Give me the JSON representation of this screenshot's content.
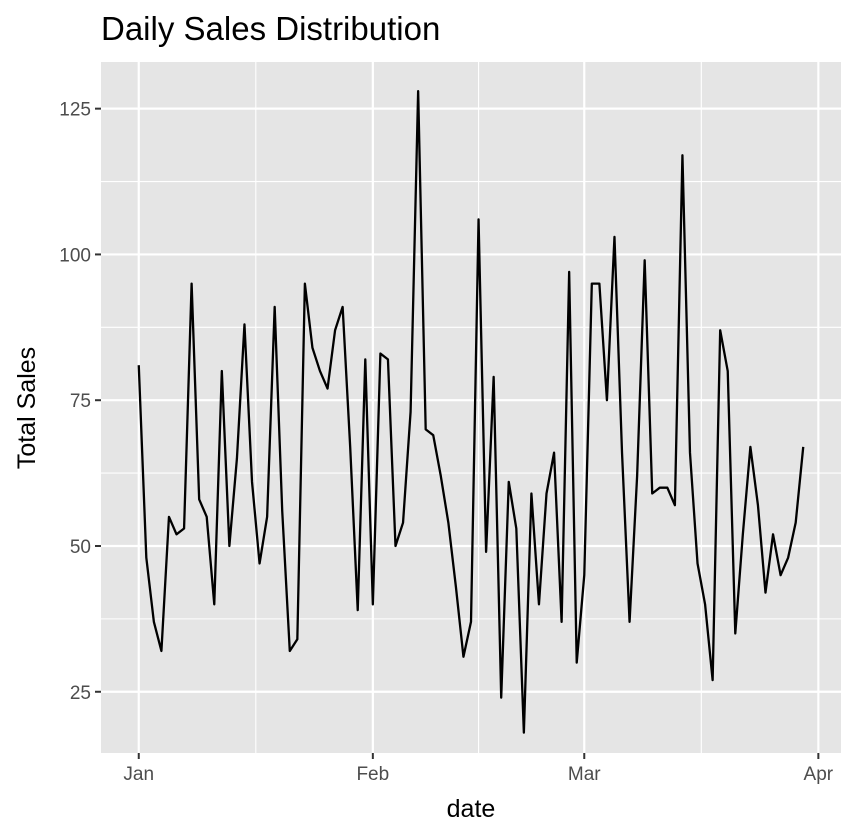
{
  "chart_data": {
    "type": "line",
    "title": "Daily Sales Distribution",
    "xlabel": "date",
    "ylabel": "Total Sales",
    "x_type": "date",
    "x_start": "2023-01-01",
    "x_end": "2023-03-31",
    "xlim": [
      "2022-12-27",
      "2023-04-04"
    ],
    "ylim": [
      14.5,
      133
    ],
    "x_ticks": [
      {
        "label": "Jan",
        "date": "2023-01-01"
      },
      {
        "label": "Feb",
        "date": "2023-02-01"
      },
      {
        "label": "Mar",
        "date": "2023-03-01"
      },
      {
        "label": "Apr",
        "date": "2023-04-01"
      }
    ],
    "y_ticks": [
      25,
      50,
      75,
      100,
      125
    ],
    "grid": true,
    "panel_background": "#e5e5e5",
    "grid_color": "#ffffff",
    "line_color": "#000000",
    "series": [
      {
        "values": [
          81,
          48,
          37,
          32,
          55,
          52,
          53,
          95,
          58,
          55,
          40,
          80,
          50,
          65,
          88,
          61,
          47,
          55,
          91,
          56,
          32,
          34,
          95,
          84,
          80,
          77,
          87,
          91,
          67,
          39,
          82,
          40,
          83,
          82,
          50,
          54,
          73,
          128,
          70,
          69,
          62,
          54,
          43,
          31,
          37,
          106,
          49,
          79,
          24,
          61,
          53,
          18,
          59,
          40,
          59,
          66,
          37,
          97,
          30,
          45,
          95,
          95,
          75,
          103,
          66,
          37,
          62,
          99,
          59,
          60,
          60,
          57,
          117,
          66,
          47,
          40,
          27,
          87,
          80,
          35,
          52,
          67,
          57,
          42,
          52,
          45,
          48,
          54,
          67
        ]
      }
    ]
  }
}
